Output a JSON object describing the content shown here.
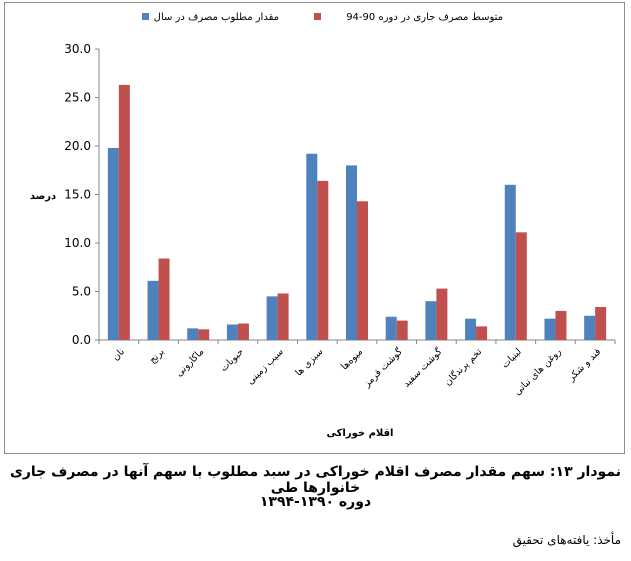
{
  "chart_data": {
    "type": "bar",
    "categories": [
      "نان",
      "برنج",
      "ماکارونی",
      "حبوبات",
      "سیب زمینی",
      "سبزی ها",
      "میوه‌ها",
      "گوشت قرمز",
      "گوشت سفید",
      "تخم پرندگان",
      "لبنیات",
      "روغن های نباتی",
      "قند و شکر"
    ],
    "series": [
      {
        "name": "مقدار مطلوب مصرف در سال",
        "color": "#4f81bd",
        "values": [
          19.8,
          6.1,
          1.2,
          1.6,
          4.5,
          19.2,
          18.0,
          2.4,
          4.0,
          2.2,
          16.0,
          2.2,
          2.5
        ]
      },
      {
        "name": "متوسط مصرف جاری در دوره 90-94",
        "color": "#c0504d",
        "values": [
          26.3,
          8.4,
          1.1,
          1.7,
          4.8,
          16.4,
          14.3,
          2.0,
          5.3,
          1.4,
          11.1,
          3.0,
          3.4
        ]
      }
    ],
    "ylim": [
      0,
      30
    ],
    "yticks": [
      "0.0",
      "5.0",
      "10.0",
      "15.0",
      "20.0",
      "25.0",
      "30.0"
    ],
    "ylabel": "درصد",
    "xlabel": "اقلام خوراکی",
    "grid": false,
    "legend": "top"
  },
  "caption": {
    "line1": "نمودار ۱۳: سهم مقدار مصرف اقلام خوراکی در سبد مطلوب با سهم آنها در مصرف جاری خانوارها طی",
    "line2": "دوره ۱۳۹۰-۱۳۹۴"
  },
  "source": "مأخذ: یافته‌های تحقیق"
}
